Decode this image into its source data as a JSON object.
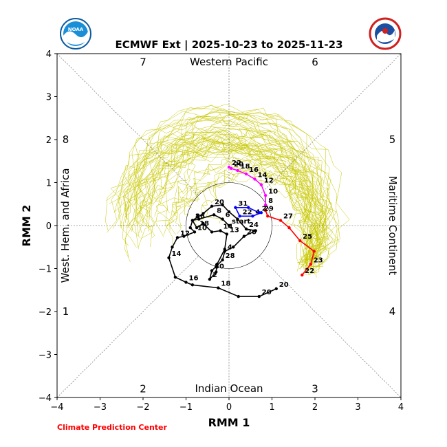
{
  "page": {
    "title": "ECMWF Ext | 2025-10-23 to 2025-11-23",
    "credit": "Climate Prediction Center"
  },
  "logos": {
    "left": {
      "name": "noaa-logo",
      "text": "NOAA"
    },
    "right": {
      "name": "nws-logo",
      "text": "NATIONAL WEATHER SERVICE"
    }
  },
  "chart_data": {
    "type": "line",
    "xlabel": "RMM 1",
    "ylabel": "RMM 2",
    "xlim": [
      -4,
      4
    ],
    "ylim": [
      -4,
      4
    ],
    "x_ticks": [
      "−4",
      "−3",
      "−2",
      "−1",
      "0",
      "1",
      "2",
      "3",
      "4"
    ],
    "y_ticks": [
      "−4",
      "−3",
      "−2",
      "−1",
      "0",
      "1",
      "2",
      "3",
      "4"
    ],
    "regions": {
      "top": "Western Pacific",
      "bottom": "Indian Ocean",
      "left": "West. Hem. and Africa",
      "right": "Maritime Continent"
    },
    "phases": [
      {
        "label": "1",
        "x": -3.8,
        "y": -2.0
      },
      {
        "label": "2",
        "x": -2.0,
        "y": -3.8
      },
      {
        "label": "3",
        "x": 2.0,
        "y": -3.8
      },
      {
        "label": "4",
        "x": 3.8,
        "y": -2.0
      },
      {
        "label": "5",
        "x": 3.8,
        "y": 2.0
      },
      {
        "label": "6",
        "x": 2.0,
        "y": 3.8
      },
      {
        "label": "7",
        "x": -2.0,
        "y": 3.8
      },
      {
        "label": "8",
        "x": -3.8,
        "y": 2.0
      }
    ],
    "unit_circle_radius": 1,
    "colors": {
      "observed": "#000000",
      "forecast_week1": "#ff0000",
      "forecast_week2": "#ff00ff",
      "forecast_week3": "#0000ff",
      "ensemble": "#c8c800"
    },
    "observed": [
      {
        "x": 1.1,
        "y": -1.47,
        "label": "20"
      },
      {
        "x": 0.7,
        "y": -1.65,
        "label": "20"
      },
      {
        "x": 0.22,
        "y": -1.65,
        "label": ""
      },
      {
        "x": -0.25,
        "y": -1.45,
        "label": "18"
      },
      {
        "x": -0.85,
        "y": -1.38,
        "label": ""
      },
      {
        "x": -1.0,
        "y": -1.32,
        "label": "16"
      },
      {
        "x": -1.25,
        "y": -1.2,
        "label": ""
      },
      {
        "x": -1.4,
        "y": -0.75,
        "label": "14"
      },
      {
        "x": -1.32,
        "y": -0.5,
        "label": ""
      },
      {
        "x": -1.2,
        "y": -0.28,
        "label": "12"
      },
      {
        "x": -1.05,
        "y": -0.25,
        "label": ""
      },
      {
        "x": -0.8,
        "y": -0.15,
        "label": "10"
      },
      {
        "x": -0.9,
        "y": -0.05,
        "label": ""
      },
      {
        "x": -0.85,
        "y": 0.12,
        "label": "8"
      },
      {
        "x": -0.6,
        "y": 0.28,
        "label": ""
      },
      {
        "x": -0.4,
        "y": 0.45,
        "label": "20"
      },
      {
        "x": -0.15,
        "y": 0.48,
        "label": ""
      },
      {
        "x": 0.0,
        "y": 0.32,
        "label": ""
      },
      {
        "x": 0.2,
        "y": 0.15,
        "label": ""
      },
      {
        "x": 0.4,
        "y": -0.08,
        "label": "24"
      },
      {
        "x": 0.62,
        "y": -0.12,
        "label": ""
      },
      {
        "x": 0.35,
        "y": -0.25,
        "label": "26"
      },
      {
        "x": 0.1,
        "y": -0.5,
        "label": ""
      },
      {
        "x": -0.1,
        "y": -0.6,
        "label": "4"
      },
      {
        "x": -0.15,
        "y": -0.8,
        "label": "28"
      },
      {
        "x": -0.3,
        "y": -0.95,
        "label": ""
      },
      {
        "x": -0.4,
        "y": -1.05,
        "label": "30"
      },
      {
        "x": -0.45,
        "y": -1.25,
        "label": "2"
      },
      {
        "x": -0.3,
        "y": -1.08,
        "label": ""
      },
      {
        "x": -0.28,
        "y": -0.9,
        "label": ""
      },
      {
        "x": -0.1,
        "y": -0.55,
        "label": ""
      },
      {
        "x": -0.05,
        "y": -0.2,
        "label": "13"
      },
      {
        "x": -0.2,
        "y": -0.12,
        "label": "14"
      },
      {
        "x": -0.4,
        "y": -0.15,
        "label": ""
      },
      {
        "x": -0.6,
        "y": 0.05,
        "label": ""
      },
      {
        "x": -0.75,
        "y": -0.05,
        "label": "18"
      },
      {
        "x": -0.85,
        "y": 0.12,
        "label": "16"
      },
      {
        "x": -0.7,
        "y": 0.15,
        "label": ""
      },
      {
        "x": -0.35,
        "y": 0.25,
        "label": "8"
      },
      {
        "x": -0.15,
        "y": 0.15,
        "label": "6"
      },
      {
        "x": 0.0,
        "y": 0.0,
        "label": "start"
      }
    ],
    "forecast_week1": [
      {
        "x": 1.7,
        "y": -1.15,
        "label": "22"
      },
      {
        "x": 1.9,
        "y": -0.9,
        "label": "23"
      },
      {
        "x": 1.98,
        "y": -0.6,
        "label": ""
      },
      {
        "x": 1.65,
        "y": -0.35,
        "label": "25"
      },
      {
        "x": 1.4,
        "y": -0.05,
        "label": ""
      },
      {
        "x": 1.2,
        "y": 0.12,
        "label": "27"
      },
      {
        "x": 0.9,
        "y": 0.22,
        "label": ""
      },
      {
        "x": 0.85,
        "y": 0.35,
        "label": ""
      }
    ],
    "forecast_week2": [
      {
        "x": 0.85,
        "y": 0.48,
        "label": "8"
      },
      {
        "x": 0.85,
        "y": 0.7,
        "label": "10"
      },
      {
        "x": 0.75,
        "y": 0.95,
        "label": "12"
      },
      {
        "x": 0.6,
        "y": 1.08,
        "label": "14"
      },
      {
        "x": 0.4,
        "y": 1.2,
        "label": "16"
      },
      {
        "x": 0.2,
        "y": 1.28,
        "label": "18"
      },
      {
        "x": 0.05,
        "y": 1.33,
        "label": "20"
      },
      {
        "x": 0.0,
        "y": 1.36,
        "label": "22"
      }
    ],
    "forecast_week3": [
      {
        "x": 0.75,
        "y": 0.3,
        "label": "29"
      },
      {
        "x": 0.55,
        "y": 0.22,
        "label": "4"
      },
      {
        "x": 0.25,
        "y": 0.22,
        "label": "22"
      },
      {
        "x": 0.15,
        "y": 0.42,
        "label": "31"
      },
      {
        "x": 0.45,
        "y": 0.42,
        "label": ""
      },
      {
        "x": 0.7,
        "y": 0.3,
        "label": "2"
      }
    ]
  }
}
